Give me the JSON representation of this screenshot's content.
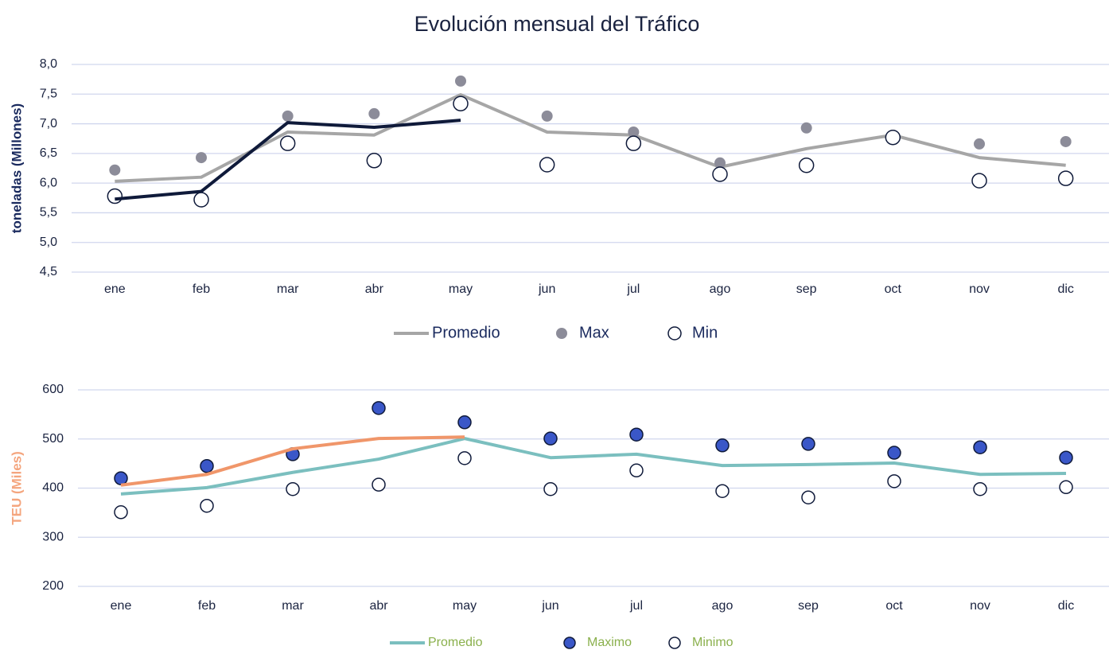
{
  "chart_data": [
    {
      "type": "line",
      "title": "Evolución mensual del Tráfico",
      "y_label": "toneladas (Millones)",
      "categories": [
        "ene",
        "feb",
        "mar",
        "abr",
        "may",
        "jun",
        "jul",
        "ago",
        "sep",
        "oct",
        "nov",
        "dic"
      ],
      "ylim": [
        4.5,
        8.0
      ],
      "yticks": [
        {
          "value": 4.5,
          "label": "4,5"
        },
        {
          "value": 5.0,
          "label": "5,0"
        },
        {
          "value": 5.5,
          "label": "5,5"
        },
        {
          "value": 6.0,
          "label": "6,0"
        },
        {
          "value": 6.5,
          "label": "6,5"
        },
        {
          "value": 7.0,
          "label": "7,0"
        },
        {
          "value": 7.5,
          "label": "7,5"
        },
        {
          "value": 8.0,
          "label": "8,0"
        }
      ],
      "grid": true,
      "series": [
        {
          "name": "Promedio",
          "style": "line",
          "color": "#a6a6a6",
          "values": [
            6.03,
            6.1,
            6.86,
            6.81,
            7.49,
            6.86,
            6.81,
            6.27,
            6.58,
            6.81,
            6.43,
            6.3
          ]
        },
        {
          "name": "Max",
          "style": "marker",
          "color": "#8c8c99",
          "values": [
            6.22,
            6.43,
            7.13,
            7.17,
            7.72,
            7.13,
            6.86,
            6.34,
            6.93,
            6.78,
            6.66,
            6.7
          ]
        },
        {
          "name": "Min",
          "style": "marker",
          "color": "#ffffff",
          "edge": "#0f1a3a",
          "values": [
            5.78,
            5.72,
            6.67,
            6.38,
            7.34,
            6.31,
            6.67,
            6.15,
            6.3,
            6.77,
            6.04,
            6.08
          ]
        },
        {
          "style": "line",
          "color": "#0f1a3a",
          "values": [
            5.73,
            5.86,
            7.02,
            6.94,
            7.06,
            null,
            null,
            null,
            null,
            null,
            null,
            null
          ]
        }
      ]
    },
    {
      "type": "line",
      "y_label": "TEU (Miles)",
      "categories": [
        "ene",
        "feb",
        "mar",
        "abr",
        "may",
        "jun",
        "jul",
        "ago",
        "sep",
        "oct",
        "nov",
        "dic"
      ],
      "ylim": [
        200,
        600
      ],
      "yticks": [
        200,
        300,
        400,
        500,
        600
      ],
      "grid": true,
      "series": [
        {
          "name": "Promedio",
          "style": "line",
          "color": "#7bbfbf",
          "values": [
            388,
            401,
            432,
            459,
            501,
            462,
            469,
            446,
            448,
            451,
            428,
            430
          ]
        },
        {
          "name": "Maximo",
          "style": "marker",
          "color": "#3a57c8",
          "edge": "#0f1a3a",
          "values": [
            420,
            445,
            469,
            563,
            534,
            501,
            509,
            487,
            490,
            472,
            483,
            462
          ]
        },
        {
          "name": "Minimo",
          "style": "marker",
          "color": "#ffffff",
          "edge": "#0f1a3a",
          "values": [
            351,
            364,
            398,
            407,
            461,
            398,
            436,
            394,
            381,
            414,
            398,
            402
          ]
        },
        {
          "style": "line",
          "color": "#f0966a",
          "values": [
            406,
            428,
            480,
            501,
            504,
            null,
            null,
            null,
            null,
            null,
            null,
            null
          ]
        }
      ]
    }
  ]
}
